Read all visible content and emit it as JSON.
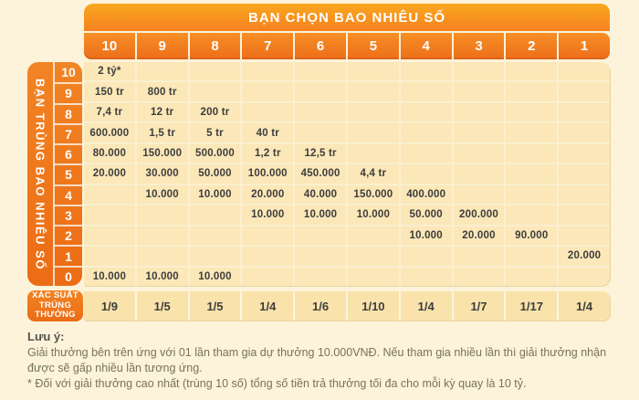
{
  "chart_data": {
    "type": "table",
    "title": "BẠN CHỌN BAO NHIÊU SỐ",
    "row_header_title": "BẠN TRÙNG BAO NHIÊU SỐ",
    "columns": [
      "10",
      "9",
      "8",
      "7",
      "6",
      "5",
      "4",
      "3",
      "2",
      "1"
    ],
    "rows": [
      {
        "match": "10",
        "prizes": [
          "2 tỷ*",
          "",
          "",
          "",
          "",
          "",
          "",
          "",
          "",
          ""
        ]
      },
      {
        "match": "9",
        "prizes": [
          "150 tr",
          "800 tr",
          "",
          "",
          "",
          "",
          "",
          "",
          "",
          ""
        ]
      },
      {
        "match": "8",
        "prizes": [
          "7,4 tr",
          "12 tr",
          "200 tr",
          "",
          "",
          "",
          "",
          "",
          "",
          ""
        ]
      },
      {
        "match": "7",
        "prizes": [
          "600.000",
          "1,5 tr",
          "5 tr",
          "40 tr",
          "",
          "",
          "",
          "",
          "",
          ""
        ]
      },
      {
        "match": "6",
        "prizes": [
          "80.000",
          "150.000",
          "500.000",
          "1,2 tr",
          "12,5 tr",
          "",
          "",
          "",
          "",
          ""
        ]
      },
      {
        "match": "5",
        "prizes": [
          "20.000",
          "30.000",
          "50.000",
          "100.000",
          "450.000",
          "4,4 tr",
          "",
          "",
          "",
          ""
        ]
      },
      {
        "match": "4",
        "prizes": [
          "",
          "10.000",
          "10.000",
          "20.000",
          "40.000",
          "150.000",
          "400.000",
          "",
          "",
          ""
        ]
      },
      {
        "match": "3",
        "prizes": [
          "",
          "",
          "",
          "10.000",
          "10.000",
          "10.000",
          "50.000",
          "200.000",
          "",
          ""
        ]
      },
      {
        "match": "2",
        "prizes": [
          "",
          "",
          "",
          "",
          "",
          "",
          "10.000",
          "20.000",
          "90.000",
          ""
        ]
      },
      {
        "match": "1",
        "prizes": [
          "",
          "",
          "",
          "",
          "",
          "",
          "",
          "",
          "",
          "20.000"
        ]
      },
      {
        "match": "0",
        "prizes": [
          "10.000",
          "10.000",
          "10.000",
          "",
          "",
          "",
          "",
          "",
          "",
          ""
        ]
      }
    ],
    "probability_label_lines": [
      "XÁC SUẤT",
      "TRÚNG",
      "THƯỞNG"
    ],
    "win_probability": [
      "1/9",
      "1/5",
      "1/5",
      "1/4",
      "1/6",
      "1/10",
      "1/4",
      "1/7",
      "1/17",
      "1/4"
    ]
  },
  "notes": {
    "heading": "Lưu ý:",
    "paragraphs": [
      "Giải thưởng bên trên ứng với 01 lần tham gia dự thưởng 10.000VNĐ. Nếu tham gia nhiều lần thì giải thưởng nhận được sẽ gấp nhiều lần tương ứng.",
      "* Đối với giải thưởng cao nhất (trùng 10 số) tổng số tiền trả thưởng tối đa cho mỗi kỳ quay là 10 tỷ."
    ]
  },
  "colors": {
    "page_bg": "#FCF3DA",
    "banner_orange_top": "#FAA71E",
    "banner_orange_bottom": "#F58220",
    "header_cell_orange": "#ED6E1A",
    "side_bar_orange": "#EC6C15",
    "prize_cell_bg": "#FBE7B8",
    "probability_cell_bg": "#F9E3AB",
    "cell_text": "#3D3D3D",
    "note_text": "#77725F"
  }
}
